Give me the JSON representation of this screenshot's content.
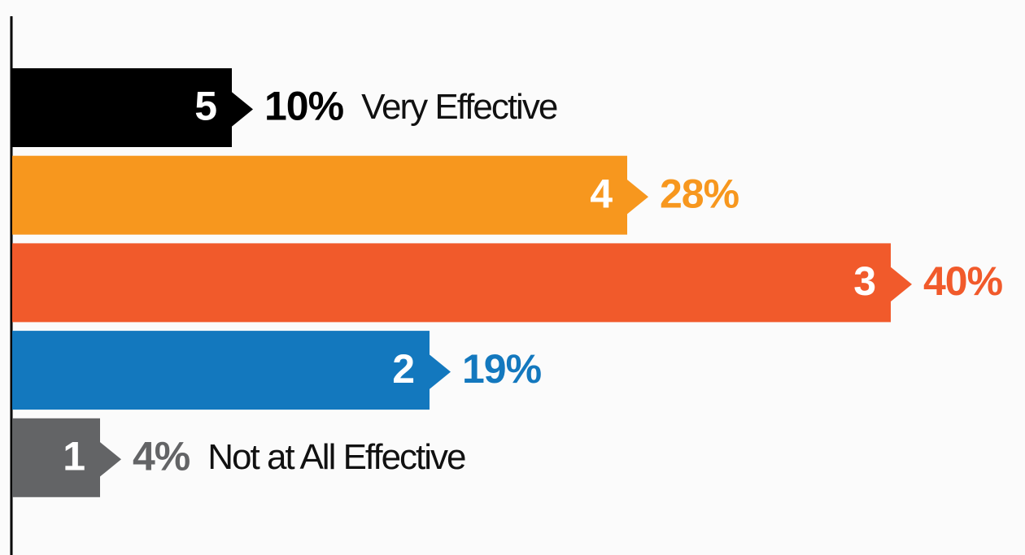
{
  "chart_data": {
    "type": "bar",
    "orientation": "horizontal",
    "categories": [
      "5",
      "4",
      "3",
      "2",
      "1"
    ],
    "values": [
      10,
      28,
      40,
      19,
      4
    ],
    "value_labels": [
      "10%",
      "28%",
      "40%",
      "19%",
      "4%"
    ],
    "colors": [
      "#000000",
      "#f7971e",
      "#f15a2b",
      "#1378be",
      "#636466"
    ],
    "label_colors": [
      "#000000",
      "#f7971e",
      "#f15a2b",
      "#1378be",
      "#636466"
    ],
    "bar_notes": [
      "Very Effective",
      null,
      null,
      null,
      "Not at All Effective"
    ],
    "xlim": [
      0,
      40
    ]
  }
}
